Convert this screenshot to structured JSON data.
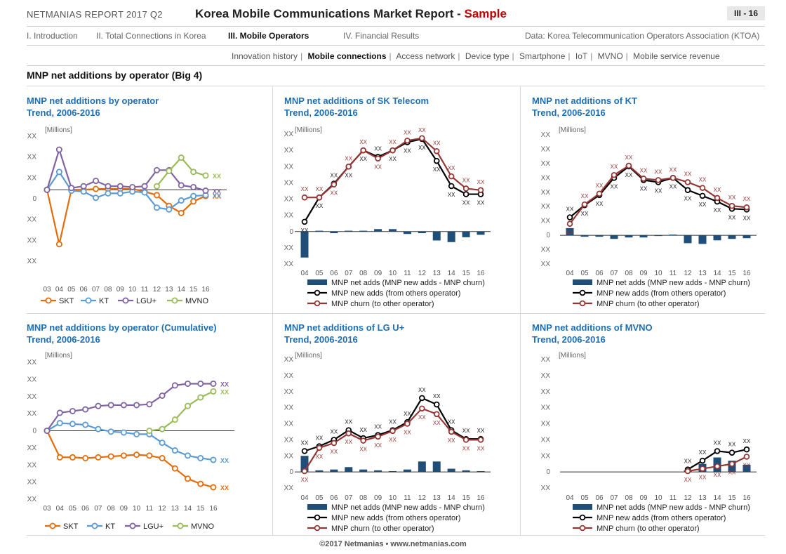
{
  "header": {
    "report": "NETMANIAS REPORT 2017 Q2",
    "title_main": "Korea Mobile Communications Market Report - ",
    "title_sample": "Sample",
    "page": "III - 16"
  },
  "nav": {
    "items": [
      "I. Introduction",
      "II. Total Connections in Korea",
      "III. Mobile Operators",
      "IV. Financial Results"
    ],
    "source": "Data: Korea Telecommunication Operators Association (KTOA)"
  },
  "subnav": {
    "items": [
      "Innovation history",
      "Mobile connections",
      "Access network",
      "Device type",
      "Smartphone",
      "IoT",
      "MVNO",
      "Mobile service revenue"
    ],
    "active": "Mobile connections",
    "separator": "|"
  },
  "section_title": "MNP net additions by operator (Big 4)",
  "footer": "©2017 Netmanias • www.netmanias.com",
  "colors": {
    "skt": "#e46c0a",
    "kt": "#5b9bd5",
    "lgu": "#8064a2",
    "mvno": "#9bbb59",
    "bar": "#1f4e79",
    "newadds": "#000000",
    "churn": "#953735",
    "title": "#1f6fb5"
  },
  "chart_data": [
    {
      "id": "c1",
      "type": "line",
      "title_line1": "MNP net additions by operator",
      "title_line2": "Trend, 2006-2016",
      "unit": "[Millions]",
      "categories": [
        "03",
        "04",
        "05",
        "06",
        "07",
        "08",
        "09",
        "10",
        "11",
        "12",
        "13",
        "14",
        "15",
        "16"
      ],
      "ytick_labels": [
        "XX",
        "XX",
        "XX",
        "0",
        "XX",
        "XX",
        "XX"
      ],
      "ylim": [
        -4,
        3
      ],
      "series": [
        {
          "name": "SKT",
          "key": "skt",
          "values": [
            0,
            -3.05,
            0,
            0,
            0.05,
            0.05,
            0.05,
            0.05,
            -0.1,
            -0.3,
            -0.9,
            -1.3,
            -0.65,
            -0.35
          ],
          "end_label": "XX"
        },
        {
          "name": "KT",
          "key": "kt",
          "values": [
            0,
            1.0,
            -0.05,
            -0.1,
            -0.45,
            -0.2,
            -0.2,
            -0.1,
            -0.15,
            -1.0,
            -1.1,
            -0.6,
            -0.35,
            -0.3
          ],
          "end_label": "XX"
        },
        {
          "name": "LGU+",
          "key": "lgu",
          "values": [
            0,
            2.25,
            0.1,
            0.2,
            0.5,
            0.2,
            0.2,
            0.15,
            0.2,
            1.1,
            1.1,
            0.25,
            0.15,
            -0.05
          ],
          "end_label": "XX"
        },
        {
          "name": "MVNO",
          "key": "mvno",
          "values": [
            null,
            null,
            null,
            null,
            null,
            null,
            null,
            null,
            null,
            0.2,
            1.05,
            1.8,
            1.0,
            0.8
          ],
          "end_label": "XX"
        }
      ]
    },
    {
      "id": "c2",
      "type": "bar+line",
      "title_line1": "MNP net additions of SK Telecom",
      "title_line2": "Trend, 2006-2016",
      "unit": "[Millions]",
      "categories": [
        "04",
        "05",
        "06",
        "07",
        "08",
        "09",
        "10",
        "11",
        "12",
        "13",
        "14",
        "15",
        "16"
      ],
      "ytick_labels": [
        "XX",
        "XX",
        "XX",
        "XX",
        "XX",
        "XX",
        "0",
        "XX",
        "XX"
      ],
      "ylim": [
        -2,
        6
      ],
      "point_label": "XX",
      "series": [
        {
          "name": "MNP net adds (MNP new adds - MNP churn)",
          "key": "bar",
          "kind": "bar",
          "values": [
            -1.6,
            0.05,
            -0.1,
            0.05,
            0.05,
            0.15,
            0.15,
            -0.15,
            -0.1,
            -0.55,
            -0.65,
            -0.35,
            -0.2
          ]
        },
        {
          "name": "MNP new adds (from others operator)",
          "key": "newadds",
          "kind": "line",
          "values": [
            0.6,
            2.1,
            2.95,
            4.0,
            5.0,
            4.6,
            5.0,
            5.5,
            5.7,
            4.35,
            2.8,
            2.3,
            2.3
          ]
        },
        {
          "name": "MNP churn (to other operator)",
          "key": "churn",
          "kind": "line",
          "values": [
            2.1,
            2.1,
            2.9,
            4.0,
            5.0,
            4.5,
            5.0,
            5.6,
            5.75,
            4.95,
            3.4,
            2.65,
            2.55
          ]
        }
      ]
    },
    {
      "id": "c3",
      "type": "bar+line",
      "title_line1": "MNP net additions of KT",
      "title_line2": "Trend, 2006-2016",
      "unit": "[Millions]",
      "categories": [
        "04",
        "05",
        "06",
        "07",
        "08",
        "09",
        "10",
        "11",
        "12",
        "13",
        "14",
        "15",
        "16"
      ],
      "ytick_labels": [
        "XX",
        "XX",
        "XX",
        "XX",
        "XX",
        "XX",
        "XX",
        "0",
        "XX",
        "XX"
      ],
      "ylim": [
        -2,
        7
      ],
      "point_label": "XX",
      "series": [
        {
          "name": "MNP net adds (MNP new adds - MNP churn)",
          "key": "bar",
          "kind": "bar",
          "values": [
            0.5,
            -0.1,
            -0.1,
            -0.25,
            -0.15,
            -0.15,
            -0.05,
            0.05,
            -0.55,
            -0.6,
            -0.35,
            -0.25,
            -0.2
          ]
        },
        {
          "name": "MNP new adds (from others operator)",
          "key": "newadds",
          "kind": "line",
          "values": [
            1.25,
            2.1,
            2.8,
            4.0,
            4.8,
            3.85,
            3.7,
            4.0,
            3.15,
            2.75,
            2.35,
            1.85,
            1.8
          ]
        },
        {
          "name": "MNP churn (to other operator)",
          "key": "churn",
          "kind": "line",
          "values": [
            0.8,
            2.15,
            2.9,
            4.2,
            4.85,
            3.95,
            3.85,
            4.0,
            3.7,
            3.3,
            2.6,
            2.05,
            1.95
          ]
        }
      ]
    },
    {
      "id": "c4",
      "type": "line",
      "title_line1": "MNP net additions by operator (Cumulative)",
      "title_line2": "Trend, 2006-2016",
      "unit": "[Millions]",
      "categories": [
        "03",
        "04",
        "05",
        "06",
        "07",
        "08",
        "09",
        "10",
        "11",
        "12",
        "13",
        "14",
        "15",
        "16"
      ],
      "ytick_labels": [
        "XX",
        "XX",
        "XX",
        "XX",
        "0",
        "XX",
        "XX",
        "XX",
        "XX"
      ],
      "ylim": [
        -4,
        4
      ],
      "series": [
        {
          "name": "SKT",
          "key": "skt",
          "values": [
            0,
            -1.55,
            -1.55,
            -1.6,
            -1.55,
            -1.5,
            -1.45,
            -1.4,
            -1.45,
            -1.6,
            -2.2,
            -2.8,
            -3.1,
            -3.3
          ],
          "end_label": "XX"
        },
        {
          "name": "KT",
          "key": "kt",
          "values": [
            0,
            0.45,
            0.4,
            0.35,
            0.1,
            -0.05,
            -0.1,
            -0.2,
            -0.2,
            -0.7,
            -1.15,
            -1.45,
            -1.6,
            -1.7
          ],
          "end_label": "XX"
        },
        {
          "name": "LGU+",
          "key": "lgu",
          "values": [
            0,
            1.05,
            1.15,
            1.25,
            1.45,
            1.5,
            1.5,
            1.5,
            1.55,
            2.05,
            2.65,
            2.75,
            2.75,
            2.75
          ],
          "end_label": "XX"
        },
        {
          "name": "MVNO",
          "key": "mvno",
          "values": [
            null,
            null,
            null,
            null,
            null,
            null,
            null,
            null,
            0,
            0.1,
            0.65,
            1.45,
            1.95,
            2.3
          ],
          "end_label": "XX"
        }
      ]
    },
    {
      "id": "c5",
      "type": "bar+line",
      "title_line1": "MNP net additions of LG U+",
      "title_line2": "Trend, 2006-2016",
      "unit": "[Millions]",
      "categories": [
        "04",
        "05",
        "06",
        "07",
        "08",
        "09",
        "10",
        "11",
        "12",
        "13",
        "14",
        "15",
        "16"
      ],
      "ytick_labels": [
        "XX",
        "XX",
        "XX",
        "XX",
        "XX",
        "XX",
        "XX",
        "0",
        "XX"
      ],
      "ylim": [
        -1,
        7
      ],
      "point_label": "XX",
      "series": [
        {
          "name": "MNP net adds (MNP new adds - MNP churn)",
          "key": "bar",
          "kind": "bar",
          "values": [
            1.0,
            0.1,
            0.15,
            0.3,
            0.15,
            0.1,
            0.05,
            0.15,
            0.65,
            0.65,
            0.2,
            0.1,
            0.05
          ]
        },
        {
          "name": "MNP new adds (from others operator)",
          "key": "newadds",
          "kind": "line",
          "values": [
            1.3,
            1.6,
            2.0,
            2.6,
            2.1,
            2.3,
            2.6,
            3.1,
            4.6,
            4.2,
            2.6,
            2.05,
            2.05
          ]
        },
        {
          "name": "MNP churn (to other operator)",
          "key": "churn",
          "kind": "line",
          "values": [
            0.05,
            1.5,
            1.8,
            2.4,
            1.95,
            2.2,
            2.55,
            3.0,
            3.95,
            3.6,
            2.5,
            2.0,
            2.0
          ]
        }
      ]
    },
    {
      "id": "c6",
      "type": "bar+line",
      "title_line1": "MNP net additions of MVNO",
      "title_line2": "Trend, 2006-2016",
      "unit": "[Millions]",
      "categories": [
        "04",
        "05",
        "06",
        "07",
        "08",
        "09",
        "10",
        "11",
        "12",
        "13",
        "14",
        "15",
        "16"
      ],
      "ytick_labels": [
        "XX",
        "XX",
        "XX",
        "XX",
        "XX",
        "XX",
        "XX",
        "0",
        "XX"
      ],
      "ylim": [
        -1,
        7
      ],
      "point_label": "XX",
      "series": [
        {
          "name": "MNP net adds (MNP new adds - MNP churn)",
          "key": "bar",
          "kind": "bar",
          "values": [
            null,
            null,
            null,
            null,
            null,
            null,
            null,
            null,
            0.1,
            0.5,
            0.9,
            0.7,
            0.45
          ]
        },
        {
          "name": "MNP new adds (from others operator)",
          "key": "newadds",
          "kind": "line",
          "values": [
            null,
            null,
            null,
            null,
            null,
            null,
            null,
            null,
            0.15,
            0.7,
            1.3,
            1.2,
            1.4
          ]
        },
        {
          "name": "MNP churn (to other operator)",
          "key": "churn",
          "kind": "line",
          "values": [
            null,
            null,
            null,
            null,
            null,
            null,
            null,
            null,
            0.05,
            0.2,
            0.35,
            0.5,
            0.95
          ]
        }
      ]
    }
  ]
}
